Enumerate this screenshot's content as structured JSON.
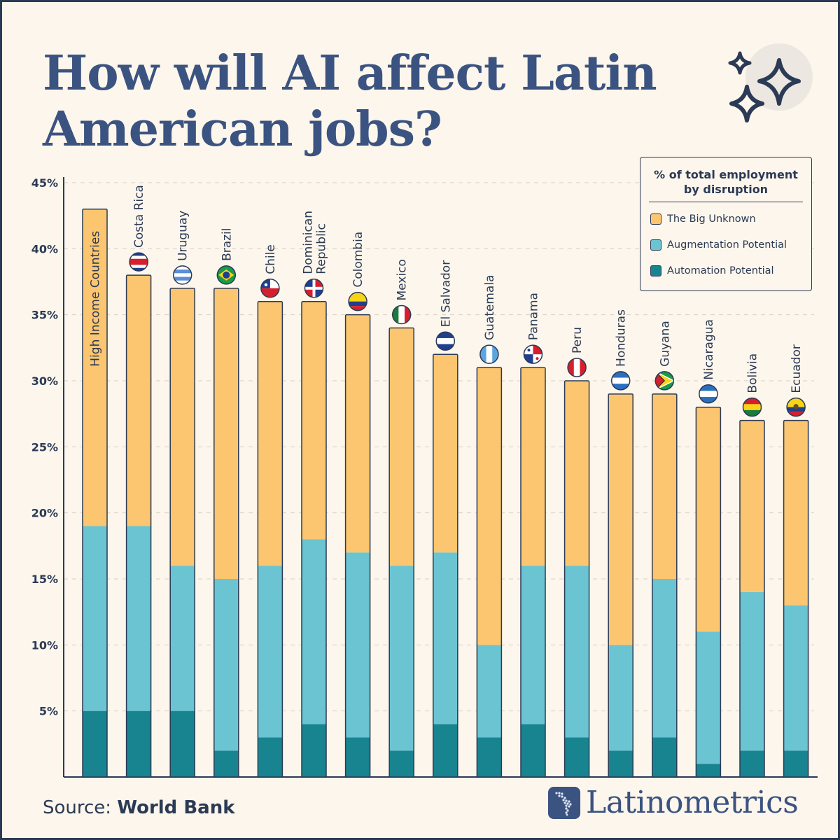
{
  "title": {
    "line1": "How will AI affect Latin",
    "line2": "American jobs?"
  },
  "source": {
    "label": "Source:",
    "name": "World Bank"
  },
  "brand": {
    "name": "Latinometrics"
  },
  "colors": {
    "unknown": "#fcc670",
    "augmentation": "#6bc4d1",
    "automation": "#18848f",
    "ink": "#2b3a55",
    "title": "#3b5381"
  },
  "icons": {
    "sparkle": "sparkle-icon",
    "logo": "latin-america-map-icon"
  },
  "legend": {
    "title": "% of total employment by disruption",
    "title_line1": "% of total employment",
    "title_line2": "by disruption",
    "items": [
      {
        "label": "The Big Unknown",
        "color": "#fcc670"
      },
      {
        "label": "Augmentation Potential",
        "color": "#6bc4d1"
      },
      {
        "label": "Automation Potential",
        "color": "#18848f"
      }
    ]
  },
  "chart_data": {
    "type": "bar",
    "stacked": true,
    "title": "How will AI affect Latin American jobs?",
    "ylabel": "% of total employment by disruption",
    "ylim": [
      0,
      45
    ],
    "yticks": [
      "5%",
      "10%",
      "15%",
      "20%",
      "25%",
      "30%",
      "35%",
      "40%",
      "45%"
    ],
    "categories": [
      "High Income Countries",
      "Costa Rica",
      "Uruguay",
      "Brazil",
      "Chile",
      "Dominican Republic",
      "Colombia",
      "Mexico",
      "El Salvador",
      "Guatemala",
      "Panama",
      "Peru",
      "Honduras",
      "Guyana",
      "Nicaragua",
      "Bolivia",
      "Ecuador"
    ],
    "series": [
      {
        "name": "Automation Potential",
        "values": [
          5,
          5,
          5,
          2,
          3,
          4,
          3,
          2,
          4,
          3,
          4,
          3,
          2,
          3,
          1,
          2,
          2
        ]
      },
      {
        "name": "Augmentation Potential",
        "values": [
          14,
          14,
          11,
          13,
          13,
          14,
          14,
          14,
          13,
          7,
          12,
          13,
          8,
          12,
          10,
          12,
          11
        ]
      },
      {
        "name": "The Big Unknown",
        "values": [
          24,
          19,
          21,
          22,
          20,
          18,
          18,
          18,
          15,
          21,
          15,
          14,
          19,
          14,
          17,
          13,
          14
        ]
      }
    ],
    "totals": [
      43,
      38,
      37,
      37,
      36,
      36,
      35,
      34,
      32,
      31,
      31,
      30,
      29,
      29,
      28,
      27,
      27
    ],
    "legend_position": "top-right",
    "grid": true
  }
}
